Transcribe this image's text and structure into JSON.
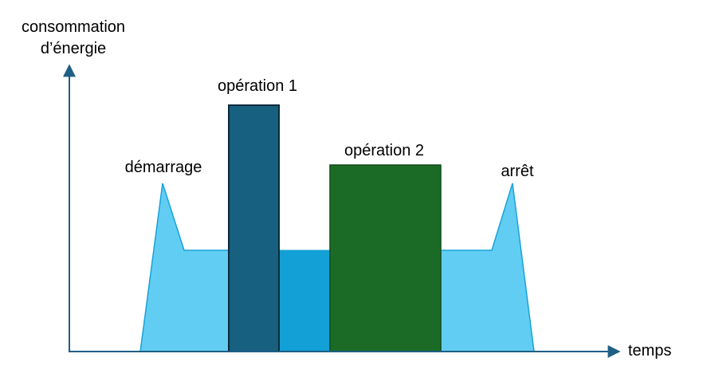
{
  "axes": {
    "y_label_line1": "consommation",
    "y_label_line2": "d’énergie",
    "x_label": "temps"
  },
  "phases": {
    "startup": {
      "label": "démarrage"
    },
    "operation1": {
      "label": "opération 1"
    },
    "operation2": {
      "label": "opération 2"
    },
    "shutdown": {
      "label": "arrêt"
    }
  },
  "colors": {
    "axis": "#1f5f85",
    "light_blue": "#62cdf3",
    "light_blue_stroke": "#17a3d6",
    "mid_blue": "#12a0d6",
    "dark_blue": "#17607f",
    "dark_blue_stroke": "#0b2a3a",
    "green": "#1b6b26",
    "green_stroke": "#0f4a17"
  }
}
